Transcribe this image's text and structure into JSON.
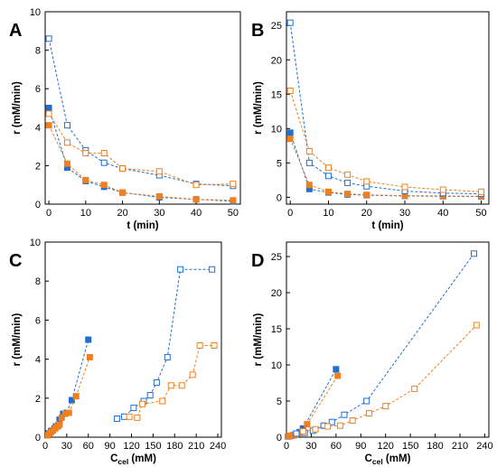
{
  "colors": {
    "blue": "#1f6fd1",
    "orange": "#f07f1f"
  },
  "chart_data": [
    {
      "panel": "A",
      "type": "scatter",
      "xlabel": "t (min)",
      "ylabel": "r (mM/min)",
      "xlim": [
        -1,
        52
      ],
      "ylim": [
        0,
        10
      ],
      "xticks": [
        0,
        10,
        20,
        30,
        40,
        50
      ],
      "yticks": [
        0,
        2,
        4,
        6,
        8,
        10
      ],
      "grid": false,
      "series": [
        {
          "color": "blue",
          "fill": "solid",
          "x": [
            0,
            5,
            10,
            15,
            20,
            30,
            40,
            50
          ],
          "y": [
            5.0,
            1.9,
            1.2,
            0.9,
            0.6,
            0.35,
            0.25,
            0.15
          ]
        },
        {
          "color": "orange",
          "fill": "solid",
          "x": [
            0,
            5,
            10,
            15,
            20,
            30,
            40,
            50
          ],
          "y": [
            4.1,
            2.1,
            1.25,
            1.0,
            0.6,
            0.4,
            0.25,
            0.2
          ]
        },
        {
          "color": "blue",
          "fill": "open",
          "x": [
            0,
            5,
            10,
            15,
            20,
            30,
            40,
            50
          ],
          "y": [
            8.6,
            4.1,
            2.8,
            2.15,
            1.85,
            1.5,
            1.05,
            0.95
          ]
        },
        {
          "color": "orange",
          "fill": "open",
          "x": [
            0,
            5,
            10,
            15,
            20,
            30,
            40,
            50
          ],
          "y": [
            4.7,
            3.2,
            2.65,
            2.65,
            1.85,
            1.7,
            1.0,
            1.05
          ]
        }
      ]
    },
    {
      "panel": "B",
      "type": "scatter",
      "xlabel": "t (min)",
      "ylabel": "r (mM/min)",
      "xlim": [
        -1,
        52
      ],
      "ylim": [
        -1,
        27
      ],
      "xticks": [
        0,
        10,
        20,
        30,
        40,
        50
      ],
      "yticks": [
        0,
        5,
        10,
        15,
        20,
        25
      ],
      "grid": false,
      "series": [
        {
          "color": "blue",
          "fill": "solid",
          "x": [
            0,
            5,
            10,
            15,
            20,
            30,
            40,
            50
          ],
          "y": [
            9.4,
            1.2,
            0.7,
            0.4,
            0.3,
            0.2,
            0.15,
            0.1
          ]
        },
        {
          "color": "orange",
          "fill": "solid",
          "x": [
            0,
            5,
            10,
            15,
            20,
            30,
            40,
            50
          ],
          "y": [
            8.5,
            1.8,
            0.8,
            0.5,
            0.35,
            0.25,
            0.2,
            0.15
          ]
        },
        {
          "color": "blue",
          "fill": "open",
          "x": [
            0,
            5,
            10,
            15,
            20,
            30,
            40,
            50
          ],
          "y": [
            25.4,
            5.0,
            3.1,
            2.1,
            1.6,
            0.9,
            0.6,
            0.5
          ]
        },
        {
          "color": "orange",
          "fill": "open",
          "x": [
            0,
            5,
            10,
            15,
            20,
            30,
            40,
            50
          ],
          "y": [
            15.5,
            6.7,
            4.3,
            3.3,
            2.3,
            1.5,
            1.1,
            0.8
          ]
        }
      ]
    },
    {
      "panel": "C",
      "type": "scatter",
      "xlabel": "C",
      "xlabel_sub": "cel",
      "xlabel_unit": " (mM)",
      "ylabel": "r (mM/min)",
      "xlim": [
        0,
        245
      ],
      "ylim": [
        0,
        10
      ],
      "xticks": [
        0,
        30,
        60,
        90,
        120,
        150,
        180,
        210,
        240
      ],
      "yticks": [
        0,
        2,
        4,
        6,
        8,
        10
      ],
      "grid": false,
      "series": [
        {
          "color": "blue",
          "fill": "solid",
          "x": [
            3,
            5,
            8,
            10,
            13,
            15,
            18,
            20,
            25,
            30,
            37,
            60
          ],
          "y": [
            0.1,
            0.2,
            0.3,
            0.35,
            0.45,
            0.55,
            0.6,
            0.9,
            1.2,
            1.25,
            1.9,
            5.0
          ]
        },
        {
          "color": "orange",
          "fill": "solid",
          "x": [
            4,
            6,
            8,
            11,
            14,
            17,
            20,
            23,
            28,
            33,
            43,
            62
          ],
          "y": [
            0.1,
            0.2,
            0.25,
            0.35,
            0.45,
            0.55,
            0.65,
            1.0,
            1.2,
            1.25,
            2.1,
            4.1
          ]
        },
        {
          "color": "blue",
          "fill": "open",
          "x": [
            100,
            110,
            123,
            137,
            146,
            155,
            170,
            188,
            232
          ],
          "y": [
            0.95,
            1.05,
            1.5,
            1.85,
            2.15,
            2.8,
            4.1,
            8.6,
            8.6
          ]
        },
        {
          "color": "orange",
          "fill": "open",
          "x": [
            117,
            128,
            135,
            163,
            175,
            190,
            205,
            215,
            235
          ],
          "y": [
            1.05,
            1.0,
            1.7,
            1.85,
            2.65,
            2.65,
            3.2,
            4.7,
            4.7
          ]
        }
      ]
    },
    {
      "panel": "D",
      "type": "scatter",
      "xlabel": "C",
      "xlabel_sub": "cel",
      "xlabel_unit": " (mM)",
      "ylabel": "r (mM/min)",
      "xlim": [
        0,
        245
      ],
      "ylim": [
        0,
        27
      ],
      "xticks": [
        0,
        30,
        60,
        90,
        120,
        150,
        180,
        210,
        240
      ],
      "yticks": [
        0,
        5,
        10,
        15,
        20,
        25
      ],
      "grid": false,
      "series": [
        {
          "color": "blue",
          "fill": "solid",
          "x": [
            2,
            4,
            6,
            9,
            12,
            16,
            20,
            60
          ],
          "y": [
            0.1,
            0.15,
            0.2,
            0.3,
            0.4,
            0.7,
            1.2,
            9.4
          ]
        },
        {
          "color": "orange",
          "fill": "solid",
          "x": [
            3,
            5,
            8,
            11,
            14,
            19,
            25,
            62
          ],
          "y": [
            0.15,
            0.2,
            0.25,
            0.35,
            0.5,
            0.8,
            1.8,
            8.5
          ]
        },
        {
          "color": "blue",
          "fill": "open",
          "x": [
            12,
            22,
            32,
            45,
            55,
            70,
            97,
            227
          ],
          "y": [
            0.5,
            0.6,
            0.9,
            1.6,
            2.1,
            3.1,
            5.0,
            25.4
          ]
        },
        {
          "color": "orange",
          "fill": "open",
          "x": [
            20,
            35,
            50,
            65,
            80,
            100,
            120,
            155,
            230
          ],
          "y": [
            0.8,
            1.1,
            1.5,
            1.6,
            2.3,
            3.3,
            4.3,
            6.7,
            15.5
          ]
        }
      ]
    }
  ]
}
